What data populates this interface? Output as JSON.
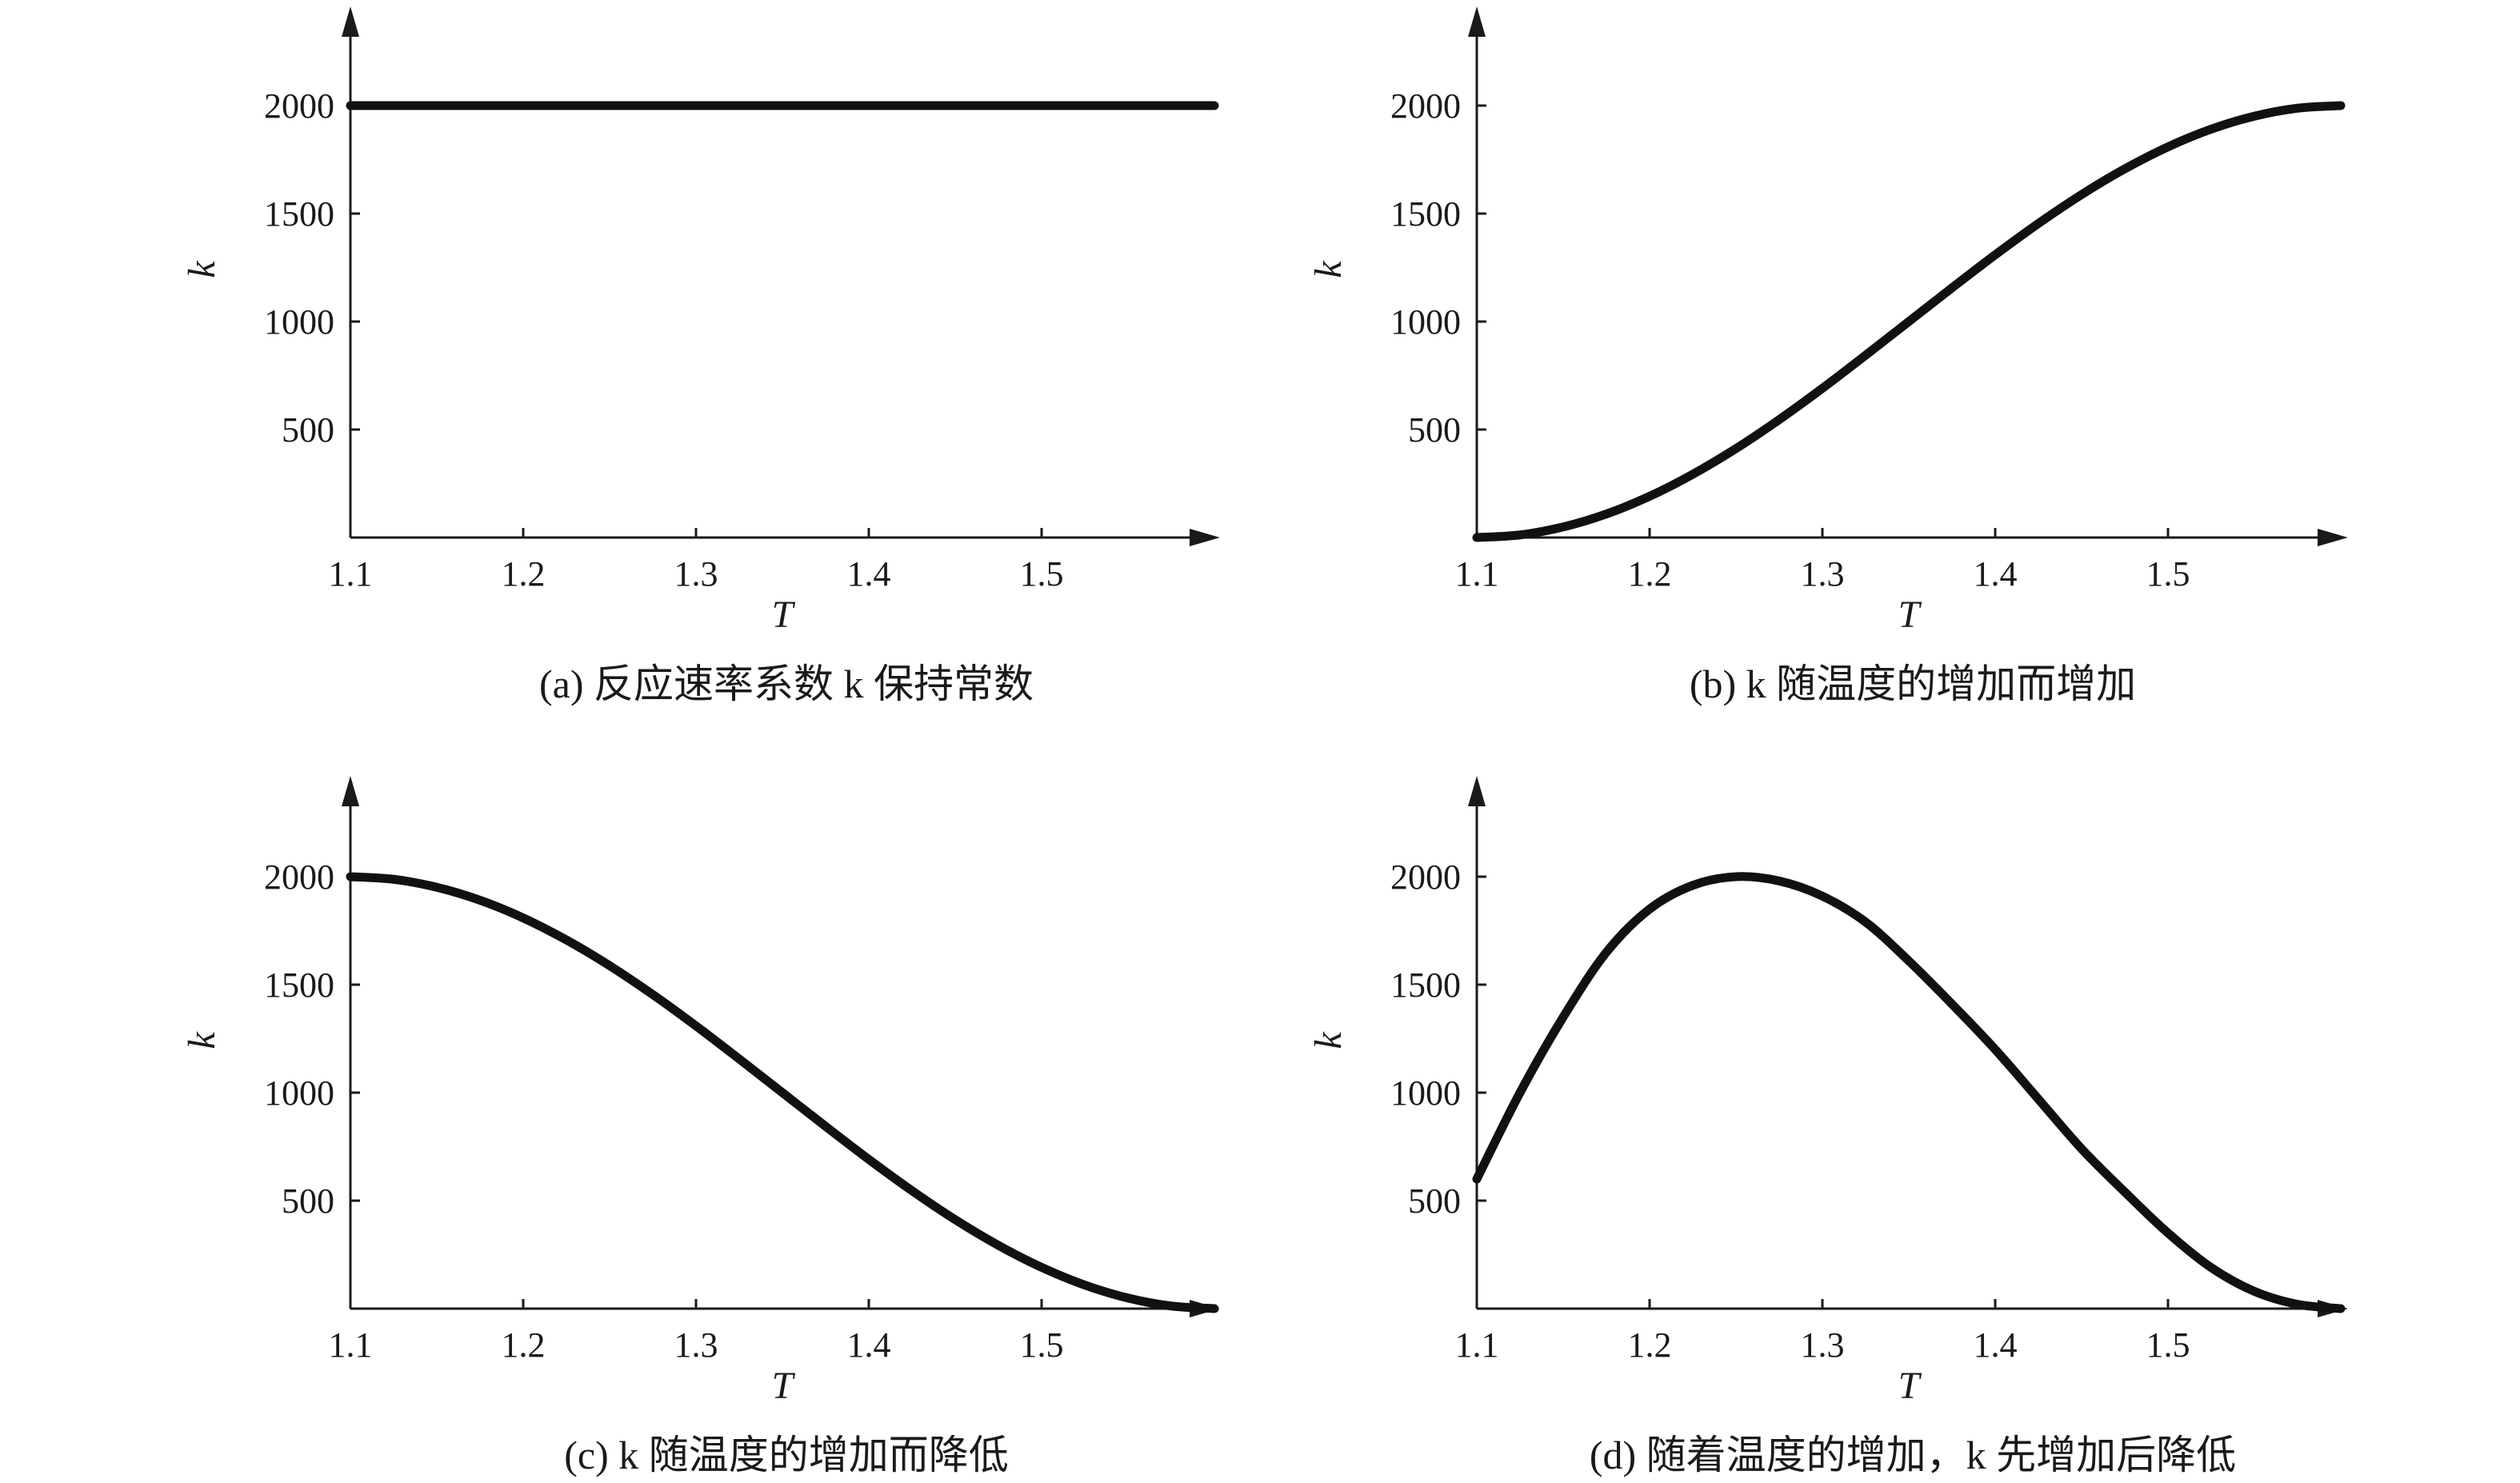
{
  "chart_data": [
    {
      "type": "line",
      "caption": "(a) 反应速率系数 k 保持常数",
      "xlabel": "T",
      "ylabel": "k",
      "xlim": [
        1.1,
        1.6
      ],
      "ylim": [
        0,
        2400
      ],
      "xticks": [
        1.1,
        1.2,
        1.3,
        1.4,
        1.5
      ],
      "xtick_labels": [
        "1.1",
        "1.2",
        "1.3",
        "1.4",
        "1.5"
      ],
      "yticks": [
        500,
        1000,
        1500,
        2000
      ],
      "ytick_labels": [
        "500",
        "1000",
        "1500",
        "2000"
      ],
      "grid": false,
      "series": [
        {
          "x": [
            1.1,
            1.15,
            1.2,
            1.25,
            1.3,
            1.35,
            1.4,
            1.45,
            1.5,
            1.55,
            1.6
          ],
          "y": [
            2000,
            2000,
            2000,
            2000,
            2000,
            2000,
            2000,
            2000,
            2000,
            2000,
            2000
          ]
        }
      ]
    },
    {
      "type": "line",
      "caption": "(b) k 随温度的增加而增加",
      "xlabel": "T",
      "ylabel": "k",
      "xlim": [
        1.1,
        1.6
      ],
      "ylim": [
        0,
        2400
      ],
      "xticks": [
        1.1,
        1.2,
        1.3,
        1.4,
        1.5
      ],
      "xtick_labels": [
        "1.1",
        "1.2",
        "1.3",
        "1.4",
        "1.5"
      ],
      "yticks": [
        500,
        1000,
        1500,
        2000
      ],
      "ytick_labels": [
        "500",
        "1000",
        "1500",
        "2000"
      ],
      "grid": false,
      "series": [
        {
          "x": [
            1.1,
            1.125,
            1.15,
            1.175,
            1.2,
            1.225,
            1.25,
            1.275,
            1.3,
            1.325,
            1.35,
            1.375,
            1.4,
            1.425,
            1.45,
            1.475,
            1.5,
            1.525,
            1.55,
            1.575,
            1.6
          ],
          "y": [
            0,
            12,
            49,
            109,
            191,
            293,
            412,
            546,
            691,
            844,
            1000,
            1156,
            1309,
            1454,
            1588,
            1707,
            1809,
            1891,
            1951,
            1988,
            2000
          ]
        }
      ]
    },
    {
      "type": "line",
      "caption": "(c) k 随温度的增加而降低",
      "xlabel": "T",
      "ylabel": "k",
      "xlim": [
        1.1,
        1.6
      ],
      "ylim": [
        0,
        2400
      ],
      "xticks": [
        1.1,
        1.2,
        1.3,
        1.4,
        1.5
      ],
      "xtick_labels": [
        "1.1",
        "1.2",
        "1.3",
        "1.4",
        "1.5"
      ],
      "yticks": [
        500,
        1000,
        1500,
        2000
      ],
      "ytick_labels": [
        "500",
        "1000",
        "1500",
        "2000"
      ],
      "grid": false,
      "series": [
        {
          "x": [
            1.1,
            1.125,
            1.15,
            1.175,
            1.2,
            1.225,
            1.25,
            1.275,
            1.3,
            1.325,
            1.35,
            1.375,
            1.4,
            1.425,
            1.45,
            1.475,
            1.5,
            1.525,
            1.55,
            1.575,
            1.6
          ],
          "y": [
            2000,
            1988,
            1951,
            1891,
            1809,
            1707,
            1588,
            1454,
            1309,
            1156,
            1000,
            844,
            691,
            546,
            412,
            293,
            191,
            109,
            49,
            12,
            0
          ]
        }
      ]
    },
    {
      "type": "line",
      "caption": "(d) 随着温度的增加，k 先增加后降低",
      "xlabel": "T",
      "ylabel": "k",
      "xlim": [
        1.1,
        1.6
      ],
      "ylim": [
        0,
        2400
      ],
      "xticks": [
        1.1,
        1.2,
        1.3,
        1.4,
        1.5
      ],
      "xtick_labels": [
        "1.1",
        "1.2",
        "1.3",
        "1.4",
        "1.5"
      ],
      "yticks": [
        500,
        1000,
        1500,
        2000
      ],
      "ytick_labels": [
        "500",
        "1000",
        "1500",
        "2000"
      ],
      "grid": false,
      "series": [
        {
          "x": [
            1.1,
            1.125,
            1.15,
            1.175,
            1.2,
            1.225,
            1.25,
            1.275,
            1.3,
            1.325,
            1.35,
            1.375,
            1.4,
            1.425,
            1.45,
            1.475,
            1.5,
            1.525,
            1.55,
            1.575,
            1.6
          ],
          "y": [
            600,
            1000,
            1350,
            1650,
            1850,
            1960,
            2000,
            1980,
            1910,
            1790,
            1610,
            1410,
            1200,
            970,
            740,
            540,
            350,
            190,
            80,
            20,
            0
          ]
        }
      ]
    }
  ]
}
